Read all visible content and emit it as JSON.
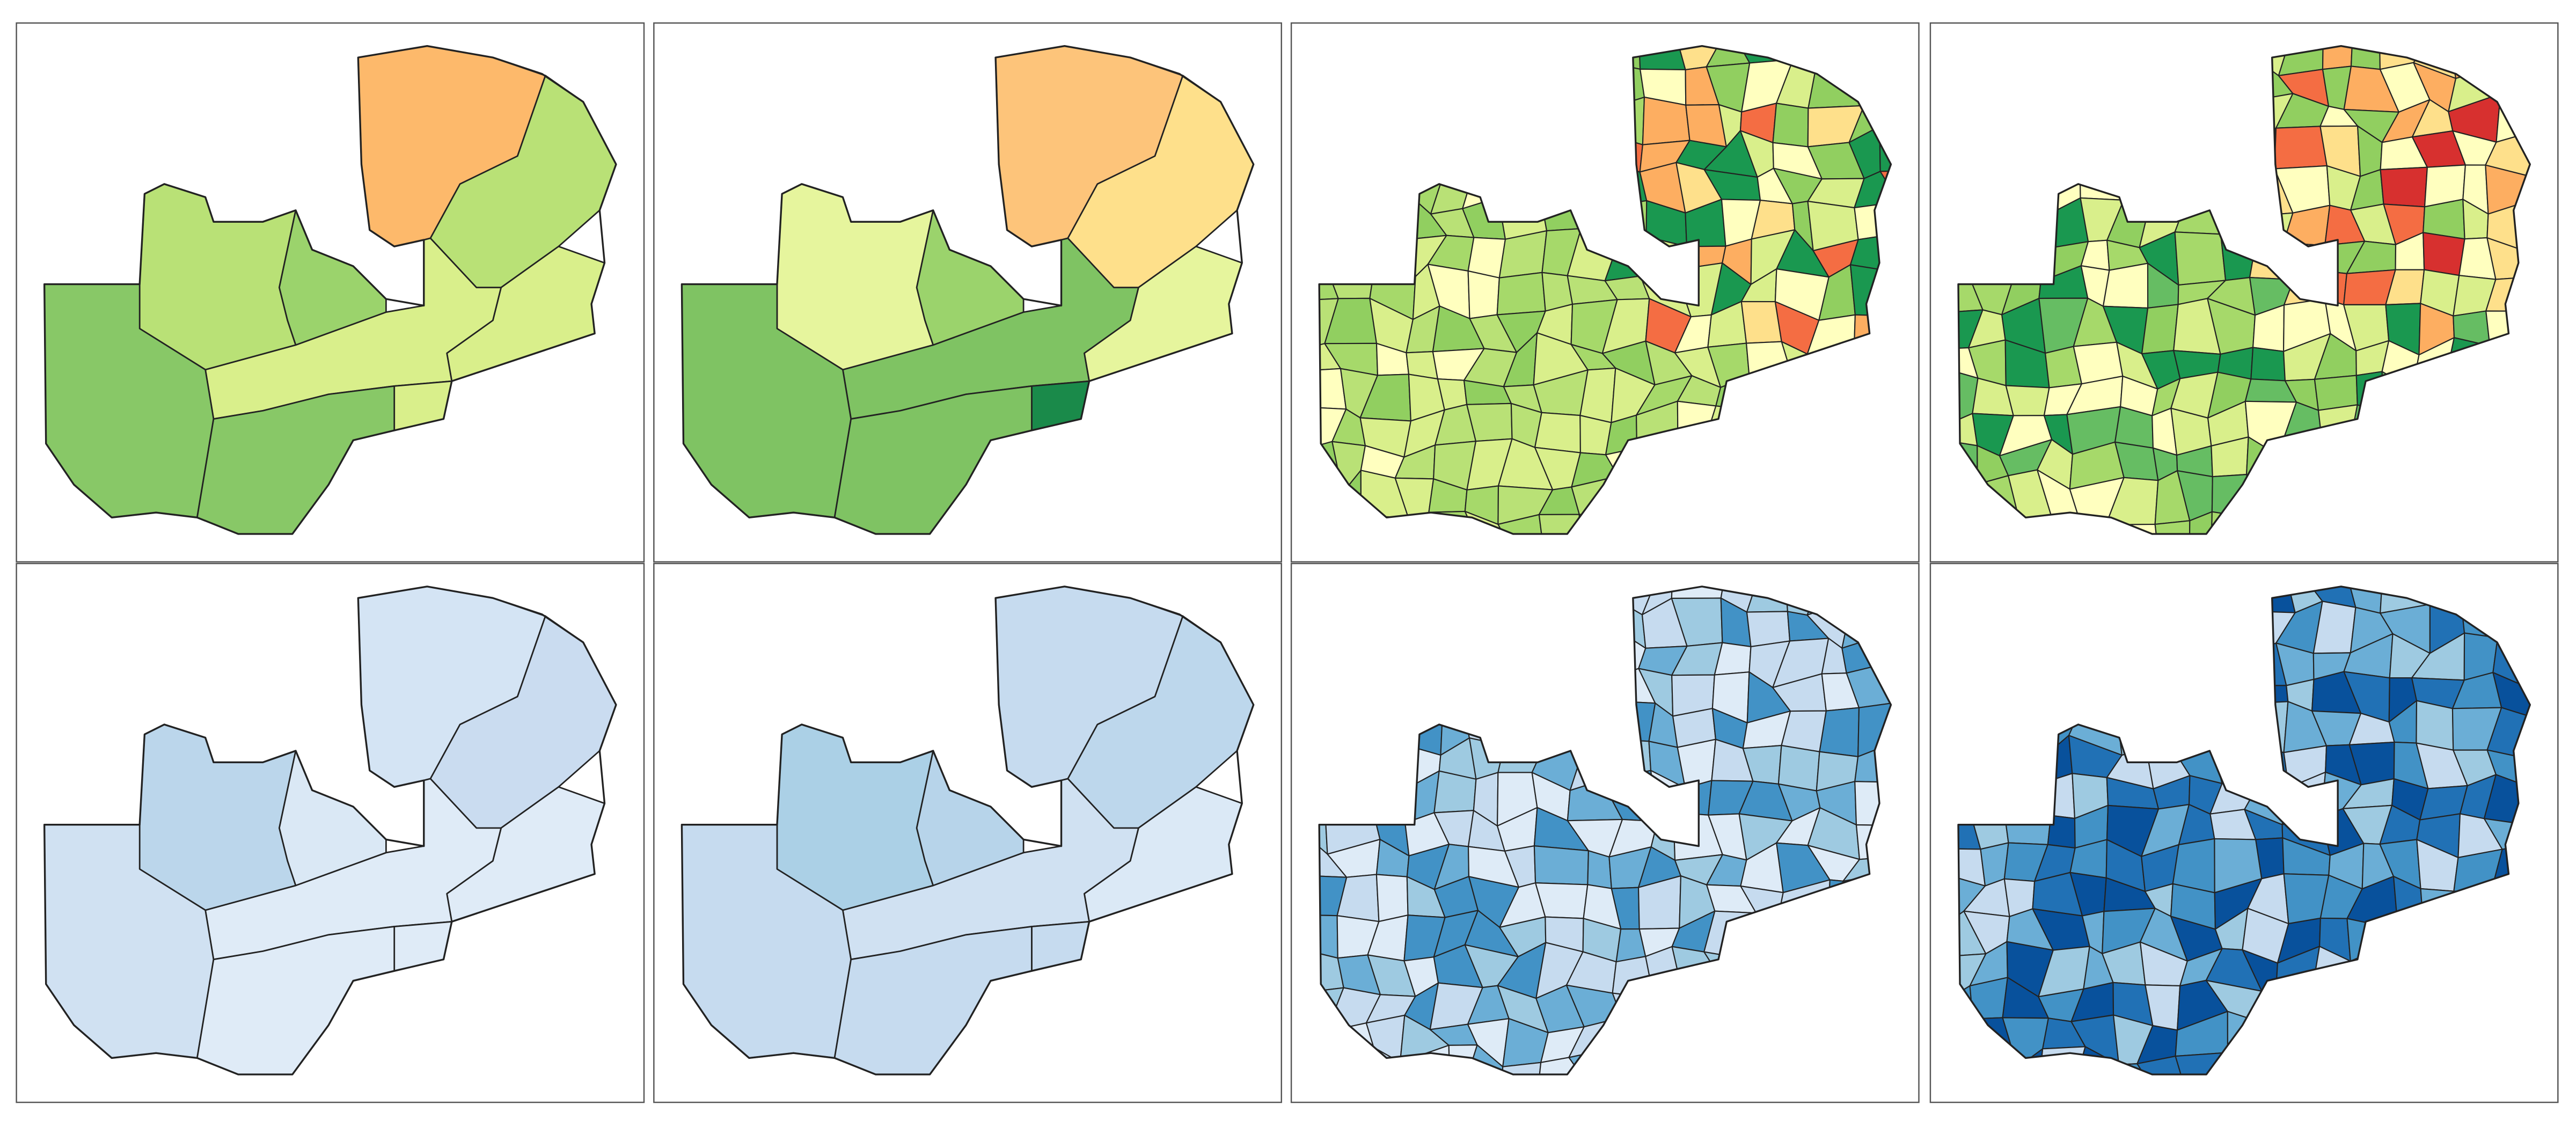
{
  "panels": [
    {
      "regions": [
        "#fdb96b",
        "#b9e176",
        "#d9ef8b",
        "#d9ef8b",
        "#b9e176",
        "#88c867",
        "#9bd36c",
        "#d9ef8b",
        "#88c867"
      ]
    },
    {
      "regions": [
        "#fdc47a",
        "#fee08b",
        "#e6f59d",
        "#7fc363",
        "#e6f59d",
        "#7fc363",
        "#9bd36c",
        "#1a8a4a",
        "#7fc363"
      ]
    },
    {
      "palettes": [
        [
          "#fee08b",
          "#fdae61",
          "#ffffbf",
          "#f46d43",
          "#d9ef8b",
          "#91cf60",
          "#1a9850"
        ],
        [
          "#d9ef8b",
          "#b9e176",
          "#91cf60",
          "#a6d96a",
          "#ffffbf",
          "#d9ef8b"
        ]
      ]
    },
    {
      "palettes": [
        [
          "#ffffbf",
          "#fee08b",
          "#fdae61",
          "#f46d43",
          "#d7302f",
          "#d9ef8b",
          "#91cf60"
        ],
        [
          "#91cf60",
          "#66bd63",
          "#1a9850",
          "#a6d96a",
          "#d9ef8b",
          "#ffffbf"
        ]
      ]
    },
    {
      "regions": [
        "#d4e4f4",
        "#cadcf0",
        "#dfebf7",
        "#dfebf7",
        "#bbd6eb",
        "#d0e1f2",
        "#dae8f5",
        "#dfebf7",
        "#dfebf7"
      ]
    },
    {
      "regions": [
        "#c6dbef",
        "#bdd7ec",
        "#dbe9f6",
        "#d0e1f2",
        "#abd0e6",
        "#c6dbef",
        "#b7d4ea",
        "#c6dbef",
        "#c6dbef"
      ]
    },
    {
      "palettes": [
        [
          "#9ecae1",
          "#6baed6",
          "#c6dbef",
          "#deebf7",
          "#4292c6"
        ],
        [
          "#9ecae1",
          "#6baed6",
          "#c6dbef",
          "#4292c6",
          "#deebf7"
        ]
      ]
    },
    {
      "palettes": [
        [
          "#4292c6",
          "#2171b5",
          "#08519c",
          "#6baed6",
          "#c6dbef",
          "#9ecae1"
        ],
        [
          "#4292c6",
          "#2171b5",
          "#6baed6",
          "#9ecae1",
          "#c6dbef",
          "#08519c"
        ]
      ]
    }
  ]
}
